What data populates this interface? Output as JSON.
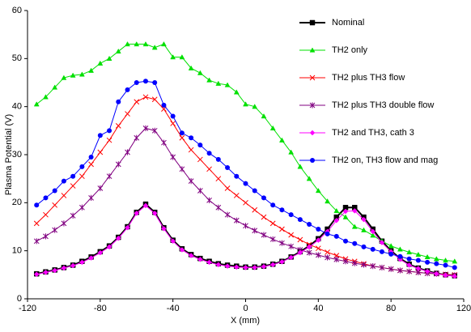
{
  "chart_data": {
    "type": "line",
    "x_label": "X (mm)",
    "y_label": "Plasma Potential (V)",
    "x": [
      -115,
      -110,
      -105,
      -100,
      -95,
      -90,
      -85,
      -80,
      -75,
      -70,
      -65,
      -60,
      -55,
      -50,
      -45,
      -40,
      -35,
      -30,
      -25,
      -20,
      -15,
      -10,
      -5,
      0,
      5,
      10,
      15,
      20,
      25,
      30,
      35,
      40,
      45,
      50,
      55,
      60,
      65,
      70,
      75,
      80,
      85,
      90,
      95,
      100,
      105,
      110,
      115
    ],
    "xlim": [
      -120,
      120
    ],
    "xticks": [
      -120,
      -80,
      -40,
      0,
      40,
      80,
      120
    ],
    "ylim": [
      0,
      60
    ],
    "yticks": [
      0,
      10,
      20,
      30,
      40,
      50,
      60
    ],
    "legend": "upper right",
    "series": [
      {
        "name": "Nominal",
        "color": "#000000",
        "marker": "square",
        "values": [
          5.2,
          5.6,
          6.0,
          6.5,
          7.0,
          7.8,
          8.7,
          9.8,
          11.0,
          12.8,
          15.0,
          18.0,
          19.7,
          18.0,
          14.8,
          12.2,
          10.4,
          9.2,
          8.4,
          7.8,
          7.3,
          7.0,
          6.8,
          6.6,
          6.6,
          6.8,
          7.2,
          7.8,
          8.7,
          9.8,
          11.0,
          12.5,
          14.5,
          17.0,
          19.0,
          19.0,
          17.0,
          14.5,
          12.0,
          10.0,
          8.4,
          7.2,
          6.4,
          5.8,
          5.3,
          5.0,
          4.8
        ]
      },
      {
        "name": "TH2 only",
        "color": "#00e000",
        "marker": "triangle",
        "values": [
          40.5,
          42,
          44,
          46,
          46.5,
          46.7,
          47.5,
          49,
          50,
          51.5,
          53,
          53,
          53,
          52.3,
          53,
          50.3,
          50.3,
          48,
          47,
          45.5,
          44.8,
          44.5,
          43,
          40.5,
          40,
          38,
          35.5,
          33,
          30.5,
          27.5,
          25,
          22.5,
          20.3,
          18.3,
          17,
          15,
          14.3,
          13.2,
          12,
          11,
          10.3,
          9.7,
          9.2,
          8.7,
          8.3,
          8,
          7.8
        ]
      },
      {
        "name": "TH2 plus TH3 flow",
        "color": "#ff0000",
        "marker": "x",
        "values": [
          15.7,
          17.5,
          19.5,
          21.5,
          23.5,
          25.5,
          28,
          30.5,
          33,
          36,
          38.5,
          41,
          42,
          41.5,
          39.5,
          36.5,
          33.5,
          31,
          29,
          27,
          25,
          23,
          21.5,
          20,
          18.5,
          17,
          15.7,
          14.5,
          13.3,
          12.3,
          11.3,
          10.5,
          9.7,
          9,
          8.3,
          7.8,
          7.3,
          6.8,
          6.5,
          6.2,
          5.9,
          5.7,
          5.5,
          5.3,
          5.2,
          5.1,
          5.0
        ]
      },
      {
        "name": "TH2 plus TH3 double flow",
        "color": "#800080",
        "marker": "star",
        "values": [
          12,
          13,
          14.3,
          15.7,
          17.3,
          19,
          21,
          23,
          25.5,
          28,
          30.5,
          33.5,
          35.5,
          35,
          32.5,
          29.5,
          27,
          24.5,
          22.5,
          20.5,
          19,
          17.5,
          16.3,
          15.2,
          14.2,
          13.3,
          12.4,
          11.6,
          10.9,
          10.2,
          9.6,
          9.1,
          8.6,
          8.2,
          7.8,
          7.4,
          7.1,
          6.8,
          6.5,
          6.2,
          5.9,
          5.7,
          5.5,
          5.3,
          5.2,
          5.0,
          4.9
        ]
      },
      {
        "name": "TH2 and TH3, cath 3",
        "color": "#ff00ff",
        "marker": "diamond",
        "values": [
          5.1,
          5.5,
          5.9,
          6.4,
          6.9,
          7.6,
          8.5,
          9.6,
          10.8,
          12.6,
          14.8,
          17.8,
          19.4,
          17.8,
          14.6,
          12.0,
          10.2,
          9.0,
          8.2,
          7.6,
          7.1,
          6.8,
          6.6,
          6.5,
          6.5,
          6.7,
          7.1,
          7.7,
          8.6,
          9.6,
          10.8,
          12.2,
          14.0,
          16.3,
          18.2,
          18.3,
          16.5,
          14.0,
          11.7,
          9.8,
          8.2,
          7.0,
          6.3,
          5.7,
          5.2,
          4.9,
          4.7
        ]
      },
      {
        "name": "TH2 on, TH3 flow and mag",
        "color": "#0000ff",
        "marker": "circle",
        "values": [
          19.5,
          21,
          22.5,
          24.5,
          25.5,
          27.5,
          29.5,
          34,
          35,
          41,
          43.5,
          45,
          45.3,
          45,
          40.3,
          38,
          34.5,
          33.5,
          32,
          30.3,
          29,
          27.3,
          25.5,
          24,
          22.5,
          21,
          19.5,
          18.5,
          17.5,
          16.5,
          15.5,
          14.5,
          13.5,
          13,
          12,
          11.5,
          10.8,
          10.3,
          9.8,
          9.3,
          8.8,
          8.3,
          8,
          7.6,
          7.3,
          7,
          6.5
        ]
      }
    ]
  }
}
